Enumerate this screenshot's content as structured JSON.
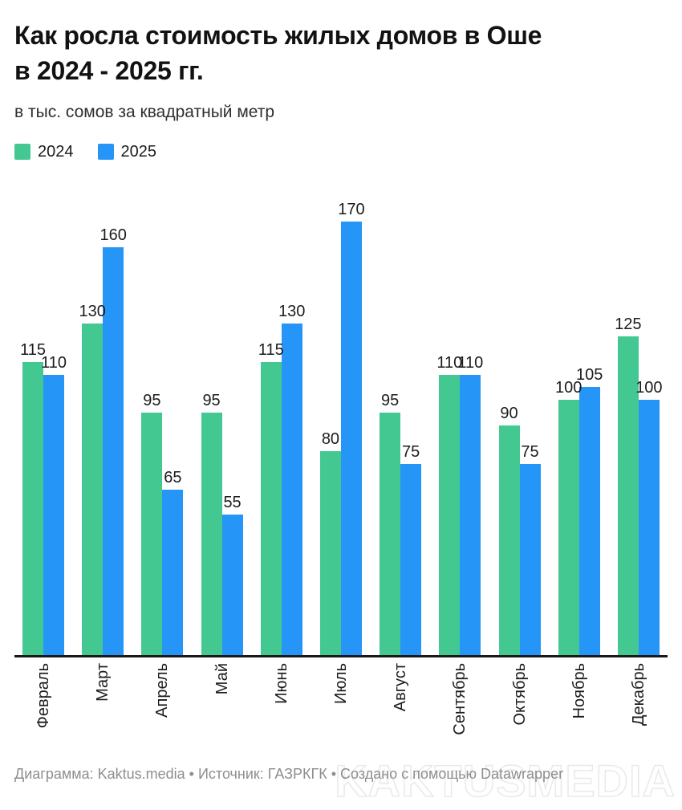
{
  "header": {
    "title_line1": "Как росла стоимость жилых домов в Оше",
    "title_line2": "в 2024 - 2025 гг.",
    "subtitle": "в тыс. сомов за квадратный метр"
  },
  "legend": {
    "items": [
      {
        "label": "2024",
        "color": "#44C892"
      },
      {
        "label": "2025",
        "color": "#2595F7"
      }
    ]
  },
  "chart_data": {
    "type": "bar",
    "title": "Как росла стоимость жилых домов в Оше в 2024 - 2025 гг.",
    "subtitle": "в тыс. сомов за квадратный метр",
    "categories": [
      "Февраль",
      "Март",
      "Апрель",
      "Май",
      "Июнь",
      "Июль",
      "Август",
      "Сентябрь",
      "Октябрь",
      "Ноябрь",
      "Декабрь"
    ],
    "series": [
      {
        "name": "2024",
        "color": "#44C892",
        "values": [
          115,
          130,
          95,
          95,
          115,
          80,
          95,
          110,
          90,
          100,
          125
        ]
      },
      {
        "name": "2025",
        "color": "#2595F7",
        "values": [
          110,
          160,
          65,
          55,
          130,
          170,
          75,
          110,
          75,
          105,
          100
        ]
      }
    ],
    "ylim": [
      0,
      170
    ],
    "value_labels": true,
    "grid": false,
    "legend_position": "top-left",
    "x_label_rotation": -90,
    "axis_color": "#181818"
  },
  "footer": {
    "text": "Диаграмма: Kaktus.media • Источник: ГАЗРКГК • Создано с помощью Datawrapper"
  },
  "watermark": {
    "text": "KAKTUSMEDIA"
  }
}
